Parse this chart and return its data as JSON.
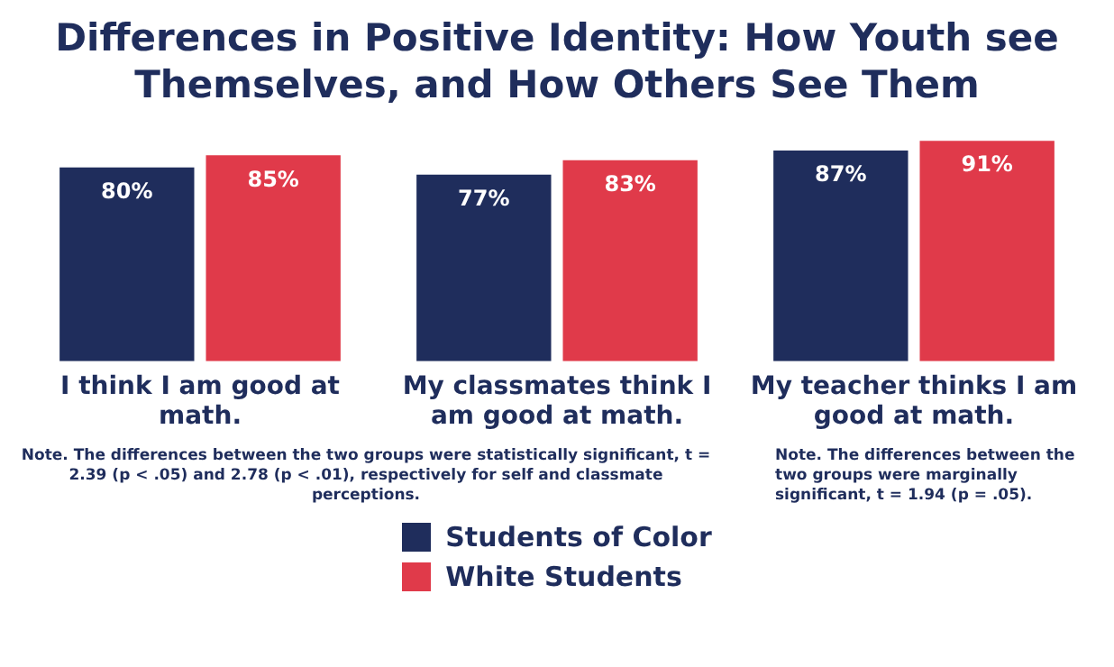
{
  "chart_data": {
    "type": "bar",
    "title": "Differences in Positive Identity: How Youth see Themselves, and How Others See Them",
    "categories": [
      "I think I am good at math.",
      "My classmates think I am good at math.",
      "My teacher thinks I am good at math."
    ],
    "series": [
      {
        "name": "Students of Color",
        "color": "#1f2d5c",
        "values": [
          80,
          77,
          87
        ],
        "value_labels": [
          "80%",
          "77%",
          "87%"
        ]
      },
      {
        "name": "White Students",
        "color": "#e03a4a",
        "values": [
          85,
          83,
          91
        ],
        "value_labels": [
          "85%",
          "83%",
          "91%"
        ]
      }
    ],
    "grid": false,
    "legend": "bottom",
    "tick_labels": "x",
    "annotations": [
      "Note. The differences between the two groups were statistically significant, t = 2.39 (p < .05) and 2.78 (p < .01), respectively for self and classmate perceptions.",
      "Note. The differences between the two groups were marginally significant, t = 1.94 (p = .05)."
    ]
  }
}
